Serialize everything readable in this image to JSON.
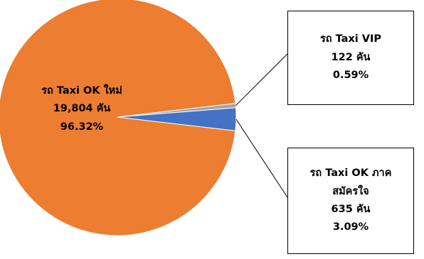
{
  "chart_data": {
    "type": "pie",
    "categories": [
      "รถ Taxi OK ใหม่",
      "รถ Taxi VIP",
      "รถ Taxi OK ภาคสมัครใจ"
    ],
    "values": [
      19804,
      122,
      635
    ],
    "percent_labels": [
      "96.32%",
      "0.59%",
      "3.09%"
    ],
    "count_labels": [
      "19,804 คัน",
      "122 คัน",
      "635 คัน"
    ],
    "colors": [
      "#ED7D31",
      "#A5A5A5",
      "#4472C4"
    ],
    "labels": [
      {
        "lines": [
          "รถ Taxi OK ใหม่",
          "19,804 คัน",
          "96.32%"
        ]
      },
      {
        "lines": [
          "รถ Taxi VIP",
          "122 คัน",
          "0.59%"
        ]
      },
      {
        "lines": [
          "รถ Taxi OK ภาค",
          "สมัครใจ",
          "635 คัน",
          "3.09%"
        ]
      }
    ]
  }
}
